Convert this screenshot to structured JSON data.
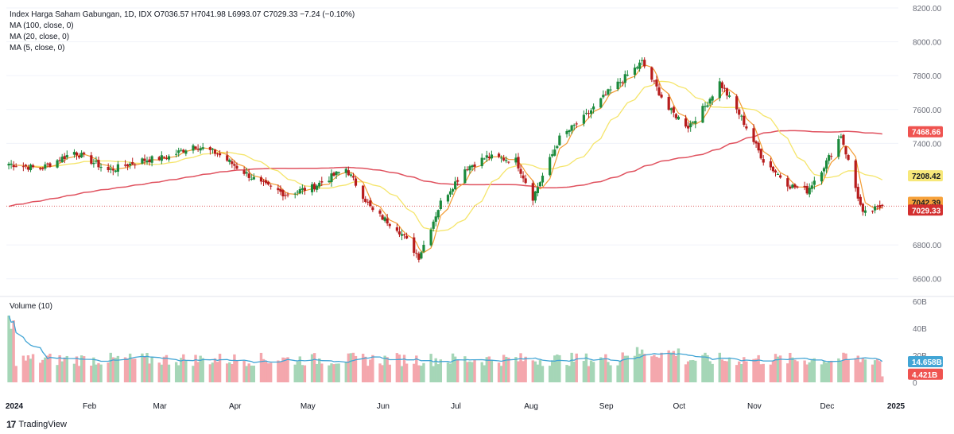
{
  "legend": {
    "symbol_line": "Index Harga Saham Gabungan, 1D, IDX  O7036.57  H7041.98  L6993.07  C7029.33  −7.24 (−0.10%)",
    "ma100": "MA (100, close, 0)",
    "ma20": "MA (20, close, 0)",
    "ma5": "MA (5, close, 0)",
    "volume": "Volume (10)"
  },
  "branding": {
    "logo": "17",
    "name": "TradingView"
  },
  "chart_data": [
    {
      "type": "candlestick",
      "ylim": [
        6500,
        8200
      ],
      "y_ticks": [
        "8200.00",
        "8000.00",
        "7800.00",
        "7600.00",
        "7400.00",
        "6800.00",
        "6600.00"
      ],
      "x_tick_labels": [
        "2024",
        "Feb",
        "Mar",
        "Apr",
        "May",
        "Jun",
        "Jul",
        "Aug",
        "Sep",
        "Oct",
        "Nov",
        "Dec",
        "2025"
      ],
      "closes_key_points": [
        {
          "date": "2024-01-02",
          "close": 7280
        },
        {
          "date": "2024-01-15",
          "close": 7250
        },
        {
          "date": "2024-01-29",
          "close": 7350
        },
        {
          "date": "2024-02-12",
          "close": 7240
        },
        {
          "date": "2024-02-26",
          "close": 7300
        },
        {
          "date": "2024-03-08",
          "close": 7320
        },
        {
          "date": "2024-03-18",
          "close": 7390
        },
        {
          "date": "2024-03-28",
          "close": 7340
        },
        {
          "date": "2024-04-15",
          "close": 7160
        },
        {
          "date": "2024-04-25",
          "close": 7100
        },
        {
          "date": "2024-05-06",
          "close": 7140
        },
        {
          "date": "2024-05-20",
          "close": 7250
        },
        {
          "date": "2024-05-31",
          "close": 7000
        },
        {
          "date": "2024-06-10",
          "close": 6900
        },
        {
          "date": "2024-06-19",
          "close": 6730
        },
        {
          "date": "2024-06-28",
          "close": 7050
        },
        {
          "date": "2024-07-08",
          "close": 7250
        },
        {
          "date": "2024-07-17",
          "close": 7320
        },
        {
          "date": "2024-07-29",
          "close": 7300
        },
        {
          "date": "2024-08-05",
          "close": 7080
        },
        {
          "date": "2024-08-16",
          "close": 7430
        },
        {
          "date": "2024-08-26",
          "close": 7550
        },
        {
          "date": "2024-09-05",
          "close": 7700
        },
        {
          "date": "2024-09-19",
          "close": 7880
        },
        {
          "date": "2024-09-30",
          "close": 7600
        },
        {
          "date": "2024-10-08",
          "close": 7500
        },
        {
          "date": "2024-10-15",
          "close": 7620
        },
        {
          "date": "2024-10-21",
          "close": 7760
        },
        {
          "date": "2024-10-30",
          "close": 7550
        },
        {
          "date": "2024-11-08",
          "close": 7300
        },
        {
          "date": "2024-11-19",
          "close": 7150
        },
        {
          "date": "2024-11-26",
          "close": 7120
        },
        {
          "date": "2024-12-04",
          "close": 7290
        },
        {
          "date": "2024-12-10",
          "close": 7450
        },
        {
          "date": "2024-12-19",
          "close": 6980
        },
        {
          "date": "2024-12-27",
          "close": 7029.33
        }
      ],
      "price_labels": [
        {
          "name": "MA (100, close, 0)",
          "value": "7468.66",
          "color": "#ef5350"
        },
        {
          "name": "MA (20, close, 0)",
          "value": "7208.42",
          "color": "#f7e87a"
        },
        {
          "name": "MA (5, close, 0)",
          "value": "7042.39",
          "color": "#f7a23b"
        },
        {
          "name": "Close",
          "value": "7029.33",
          "color": "#d32f2f"
        }
      ],
      "series": [
        {
          "name": "MA (100, close, 0)",
          "color": "#e0525f"
        },
        {
          "name": "MA (20, close, 0)",
          "color": "#f5e56b"
        },
        {
          "name": "MA (5, close, 0)",
          "color": "#f39c33"
        }
      ],
      "up_color": "#26a69a",
      "up_fill": "#1b8a3c",
      "down_color": "#b71c1c"
    },
    {
      "type": "bar",
      "ylim": [
        0,
        60
      ],
      "y_ticks": [
        "60B",
        "40B",
        "20B",
        "0"
      ],
      "volume_ma_label": "14.658B",
      "last_volume_label": "4.421B",
      "volume_ma_color": "#42a5d5",
      "up_color": "#a5d6b7",
      "down_color": "#f4a7ad"
    }
  ]
}
